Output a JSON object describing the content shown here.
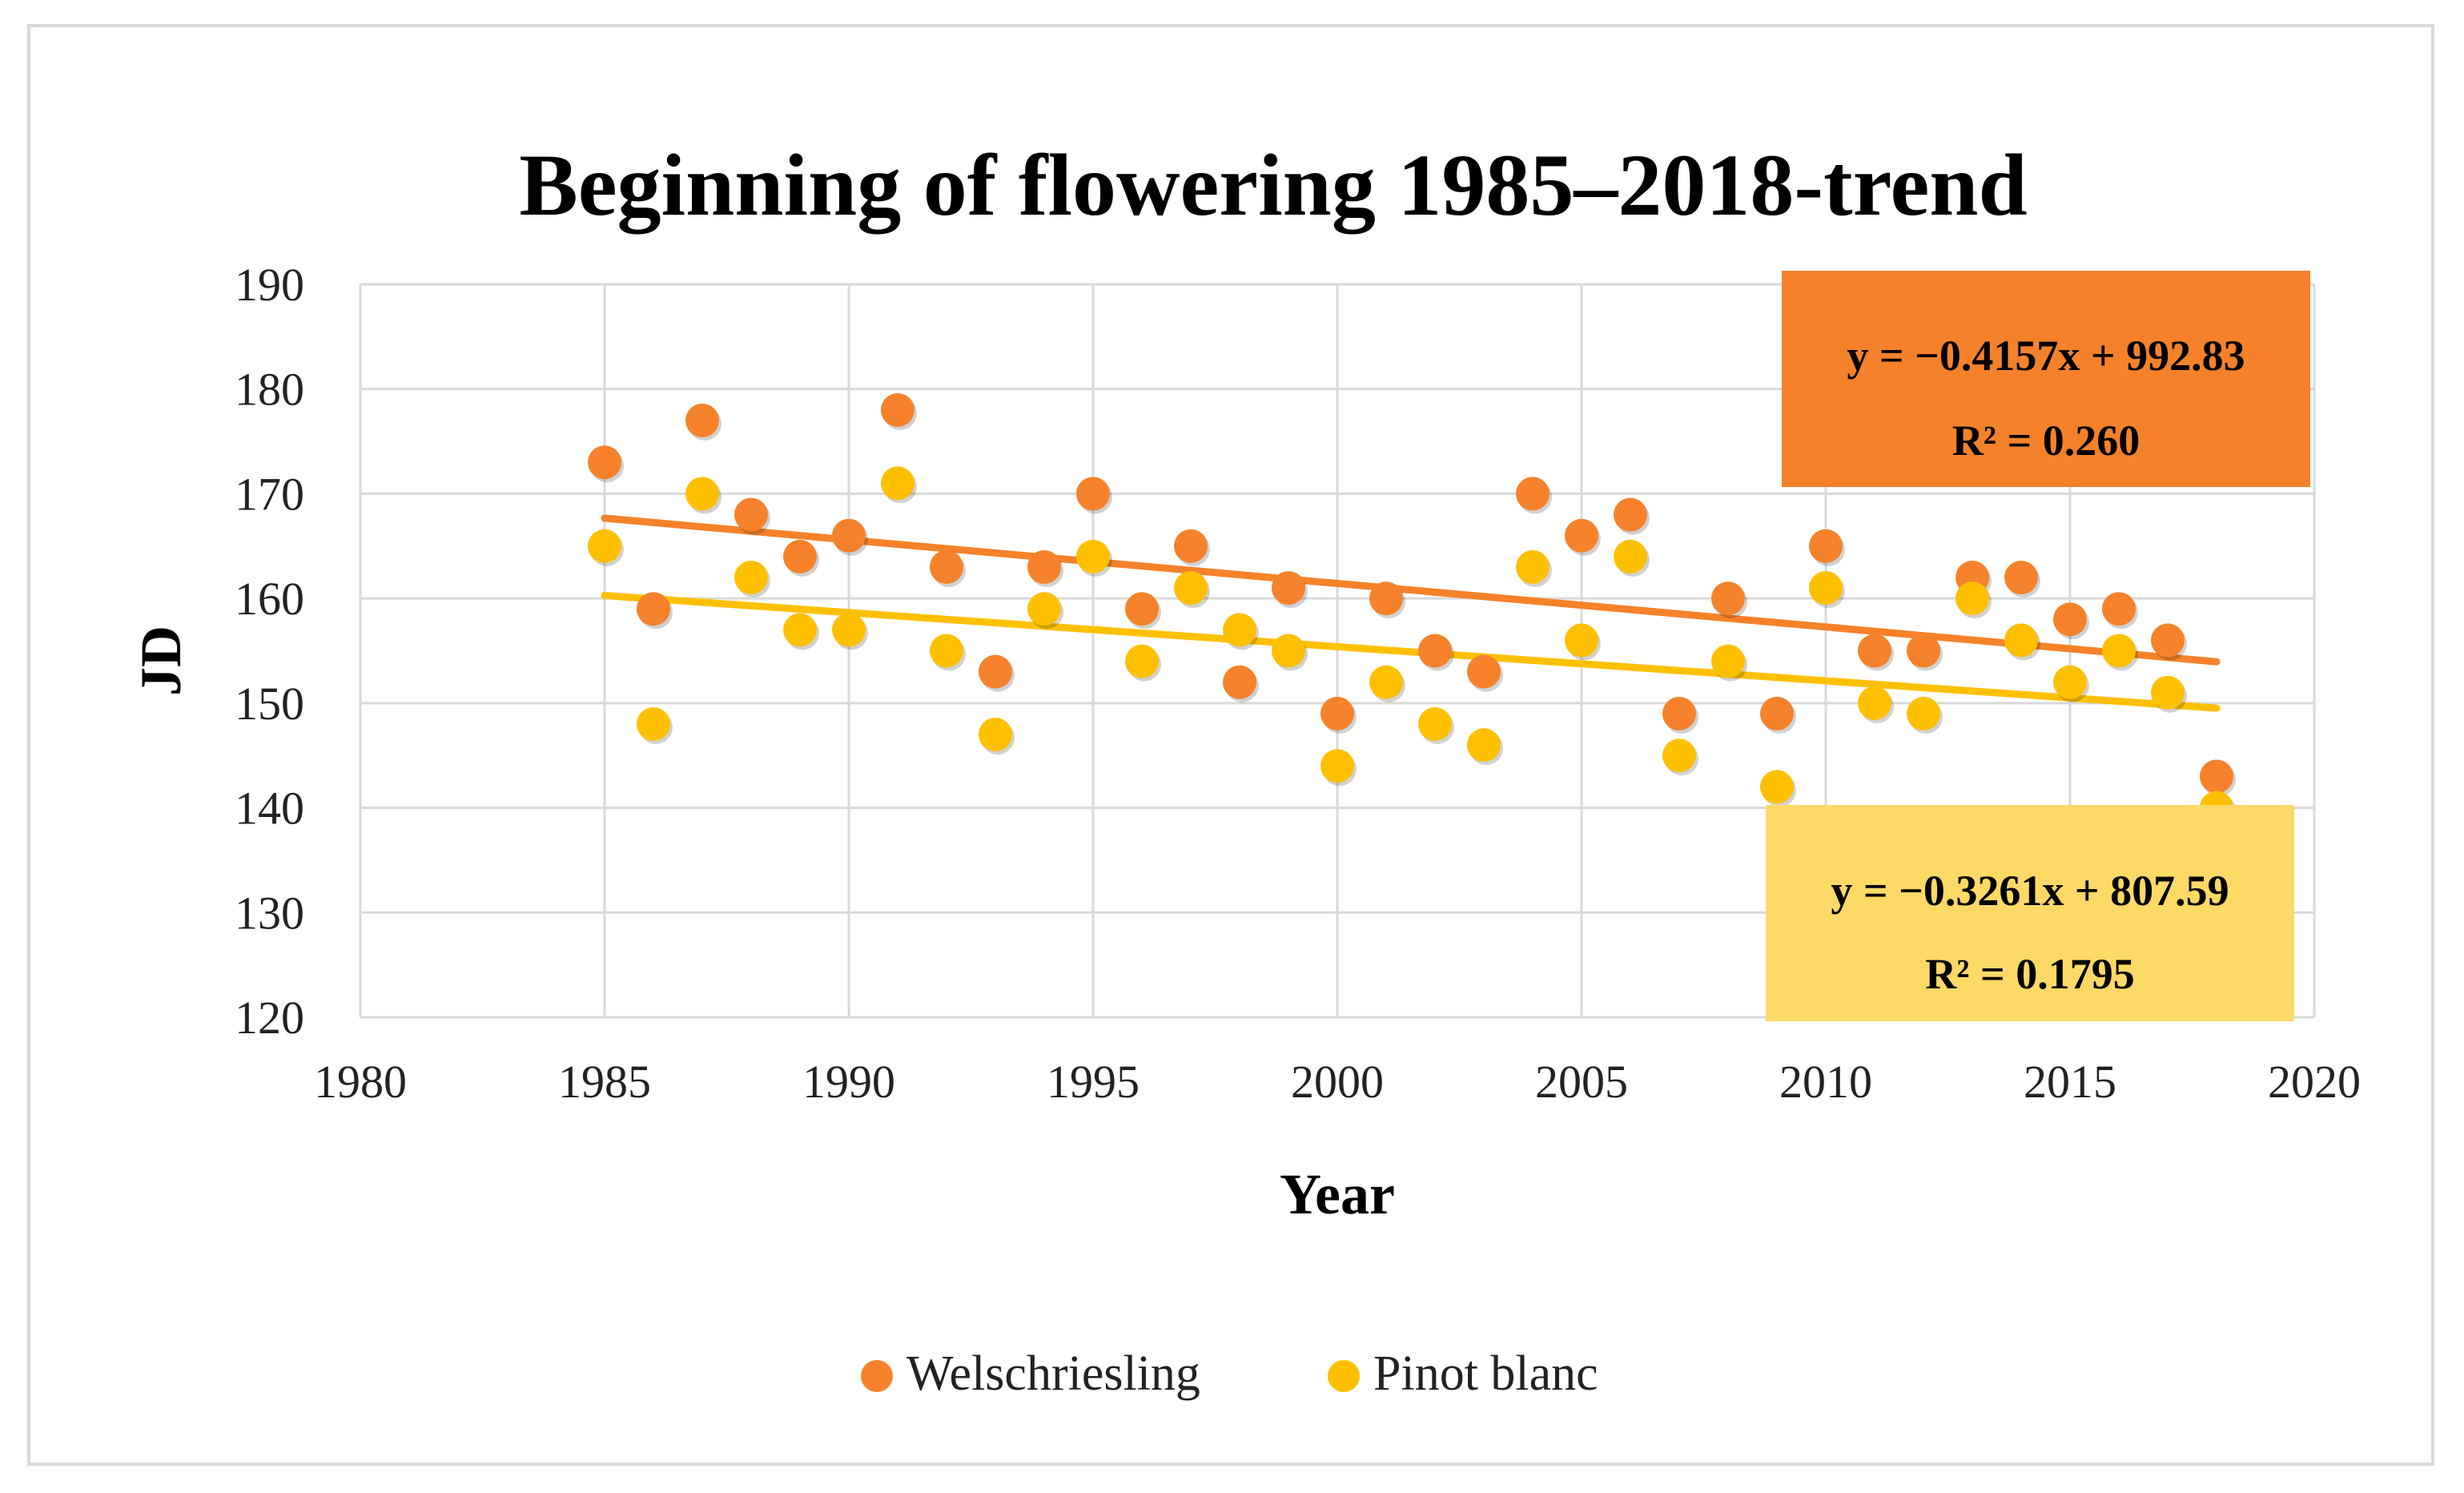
{
  "chart_data": {
    "type": "scatter",
    "title": "Beginning of flowering 1985–2018-trend",
    "xlabel": "Year",
    "ylabel": "JD",
    "xlim": [
      1980,
      2020
    ],
    "ylim": [
      120,
      190
    ],
    "xticks": [
      1980,
      1985,
      1990,
      1995,
      2000,
      2005,
      2010,
      2015,
      2020
    ],
    "yticks": [
      120,
      130,
      140,
      150,
      160,
      170,
      180,
      190
    ],
    "grid": true,
    "legend_position": "bottom",
    "series": [
      {
        "name": "Welschriesling",
        "color": "#f5822a",
        "x": [
          1985,
          1986,
          1987,
          1988,
          1989,
          1990,
          1991,
          1992,
          1993,
          1994,
          1995,
          1996,
          1997,
          1998,
          1999,
          2000,
          2001,
          2002,
          2003,
          2004,
          2005,
          2006,
          2007,
          2008,
          2009,
          2010,
          2011,
          2012,
          2013,
          2014,
          2015,
          2016,
          2017,
          2018
        ],
        "values": [
          173,
          159,
          177,
          168,
          164,
          166,
          178,
          163,
          153,
          163,
          170,
          159,
          165,
          152,
          161,
          149,
          160,
          155,
          153,
          170,
          166,
          168,
          149,
          160,
          149,
          165,
          155,
          155,
          162,
          162,
          158,
          159,
          156,
          143
        ],
        "trendline": {
          "slope": -0.4157,
          "intercept": 992.83,
          "equation": "y = −0.4157x + 992.83",
          "r2": "R² = 0.260"
        }
      },
      {
        "name": "Pinot blanc",
        "color": "#ffc000",
        "x": [
          1985,
          1986,
          1987,
          1988,
          1989,
          1990,
          1991,
          1992,
          1993,
          1994,
          1995,
          1996,
          1997,
          1998,
          1999,
          2000,
          2001,
          2002,
          2003,
          2004,
          2005,
          2006,
          2007,
          2008,
          2009,
          2010,
          2011,
          2012,
          2013,
          2014,
          2015,
          2016,
          2017,
          2018
        ],
        "values": [
          165,
          148,
          170,
          162,
          157,
          157,
          171,
          155,
          147,
          159,
          164,
          154,
          161,
          157,
          155,
          144,
          152,
          148,
          146,
          163,
          156,
          164,
          145,
          154,
          142,
          161,
          150,
          149,
          160,
          156,
          152,
          155,
          151,
          140
        ],
        "trendline": {
          "slope": -0.3261,
          "intercept": 807.59,
          "equation": "y = −0.3261x + 807.59",
          "r2": "R² = 0.1795"
        }
      }
    ],
    "annotation_colors": {
      "welschriesling_box": "#f5822a",
      "pinot_box": "#ffd966"
    }
  }
}
